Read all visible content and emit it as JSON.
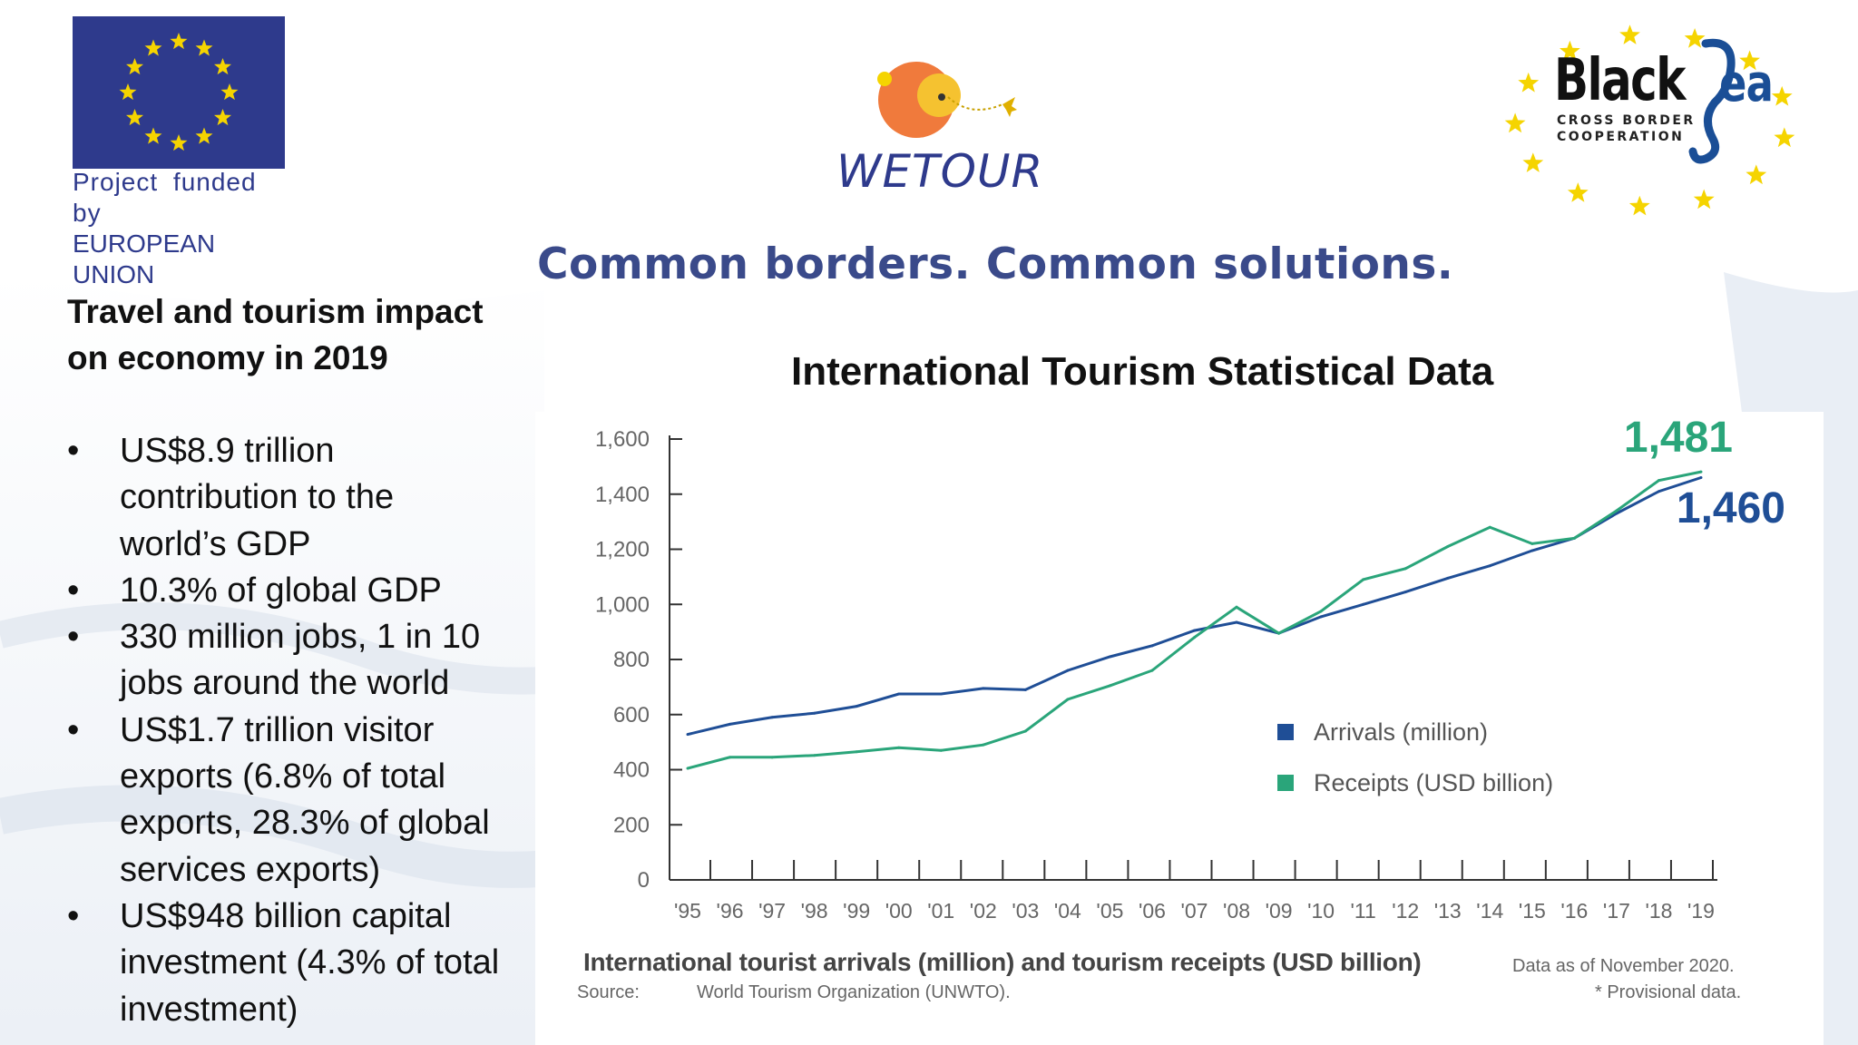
{
  "logos": {
    "eu": {
      "line1": "Project funded by",
      "line2": "EUROPEAN UNION"
    },
    "wetour": {
      "text": "WETOUR"
    },
    "blacksea": {
      "word1": "Black",
      "word2": "ea",
      "sub1": "CROSS BORDER",
      "sub2": "COOPERATION"
    }
  },
  "slogan": "Common borders. Common solutions.",
  "left": {
    "title_line1": "Travel and tourism impact",
    "title_line2": "on economy in 2019",
    "bullets": [
      [
        "US$8.9 trillion",
        "contribution to the",
        "world’s GDP"
      ],
      [
        "10.3% of global GDP"
      ],
      [
        "330 million jobs, 1 in 10",
        "jobs around the world"
      ],
      [
        "US$1.7 trillion visitor",
        "exports (6.8% of total",
        "exports, 28.3% of global",
        "services exports)"
      ],
      [
        "US$948 billion capital",
        "investment (4.3% of total",
        "investment)"
      ]
    ]
  },
  "chart_title": "International Tourism Statistical Data",
  "chart_data": {
    "type": "line",
    "x": [
      "'95",
      "'96",
      "'97",
      "'98",
      "'99",
      "'00",
      "'01",
      "'02",
      "'03",
      "'04",
      "'05",
      "'06",
      "'07",
      "'08",
      "'09",
      "'10",
      "'11",
      "'12",
      "'13",
      "'14",
      "'15",
      "'16",
      "'17",
      "'18",
      "'19"
    ],
    "ylim": [
      0,
      1600
    ],
    "yticks": [
      "0",
      "200",
      "400",
      "600",
      "800",
      "1,000",
      "1,200",
      "1,400",
      "1,600"
    ],
    "series": [
      {
        "name": "Arrivals (million)",
        "color": "#1f4e96",
        "values": [
          528,
          565,
          590,
          605,
          630,
          675,
          675,
          695,
          690,
          760,
          810,
          850,
          905,
          935,
          895,
          955,
          1000,
          1045,
          1095,
          1140,
          1195,
          1240,
          1330,
          1410,
          1460
        ]
      },
      {
        "name": "Receipts (USD billion)",
        "color": "#2aa57a",
        "values": [
          405,
          445,
          445,
          452,
          465,
          480,
          470,
          490,
          540,
          655,
          705,
          760,
          880,
          990,
          895,
          975,
          1090,
          1130,
          1210,
          1280,
          1220,
          1240,
          1340,
          1450,
          1481
        ]
      }
    ],
    "annotations": [
      "1,481",
      "1,460"
    ],
    "legend": "center-right",
    "grid": false
  },
  "caption": {
    "main": "International tourist arrivals (million) and tourism receipts (USD billion)",
    "note": "Data as of November 2020.",
    "source_label": "Source:",
    "source": "World Tourism Organization (UNWTO).",
    "provisional": "* Provisional data."
  }
}
